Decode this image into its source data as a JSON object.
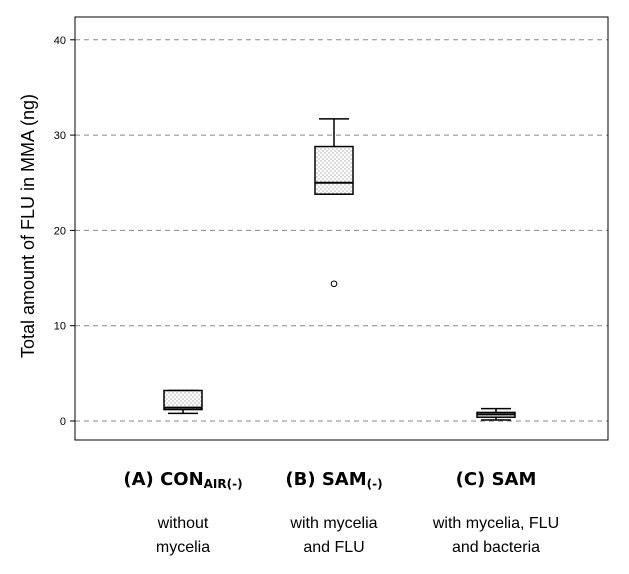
{
  "chart_data": {
    "type": "boxplot",
    "title": "",
    "xlabel": "",
    "ylabel": "Total amount of FLU in MMA (ng)",
    "ylim": [
      -2,
      42
    ],
    "yticks": [
      0,
      10,
      20,
      30,
      40
    ],
    "grid": "horizontal dashed",
    "categories": [
      {
        "code": "(A)",
        "name": "CON",
        "subscript": "AIR(-)",
        "description": [
          "without",
          "mycelia"
        ],
        "min": 0.8,
        "q1": 1.2,
        "median": 1.4,
        "q3": 3.2,
        "max": 3.2,
        "outliers": []
      },
      {
        "code": "(B)",
        "name": "SAM",
        "subscript": "(-)",
        "description": [
          "with mycelia",
          "and FLU"
        ],
        "min": 23.8,
        "q1": 23.8,
        "median": 25.0,
        "q3": 28.8,
        "max": 31.7,
        "outliers": [
          14.4
        ]
      },
      {
        "code": "(C)",
        "name": "SAM",
        "subscript": "",
        "description": [
          "with mycelia, FLU",
          "and bacteria"
        ],
        "min": 0.1,
        "q1": 0.4,
        "median": 0.7,
        "q3": 0.9,
        "max": 1.3,
        "outliers": []
      }
    ]
  }
}
